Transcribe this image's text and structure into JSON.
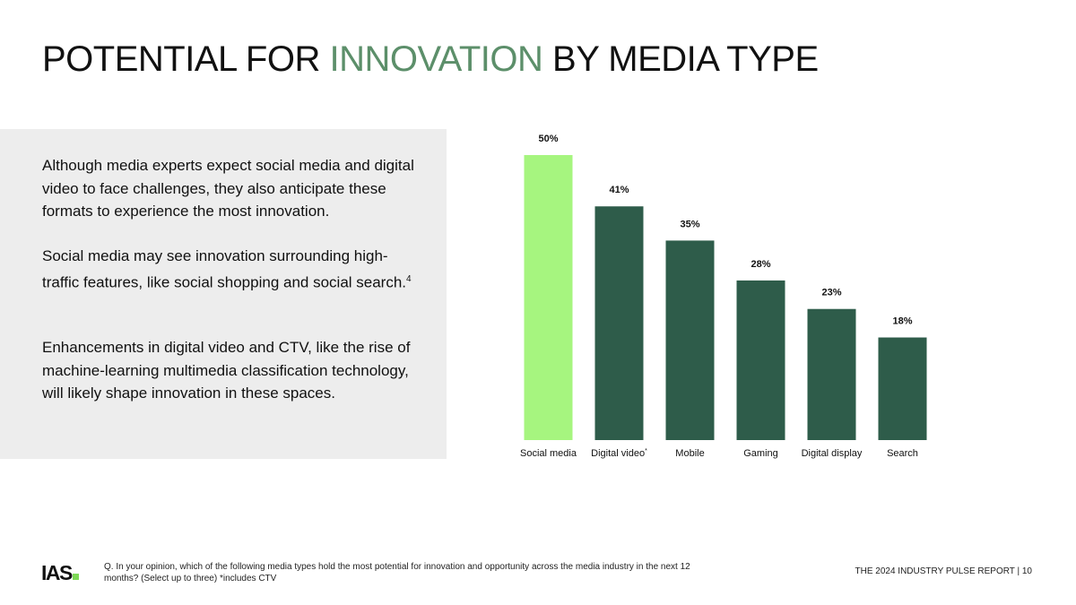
{
  "header": {
    "title_before": "POTENTIAL FOR ",
    "title_accent": "INNOVATION",
    "title_after": " BY MEDIA TYPE"
  },
  "body": {
    "p1": "Although media experts expect social media and digital video to face challenges, they also anticipate these formats to experience the most innovation.",
    "p2": "Social media may see innovation surrounding high-traffic features, like social shopping and social search.",
    "p2_ref": "4",
    "p3": "Enhancements in digital video and CTV, like the rise of machine-learning multimedia classification technology, will likely shape innovation in these spaces."
  },
  "chart_data": {
    "type": "bar",
    "categories": [
      "Social media",
      "Digital video",
      "Mobile",
      "Gaming",
      "Digital display",
      "Search"
    ],
    "category_marks": [
      "",
      "*",
      "",
      "",
      "",
      ""
    ],
    "values": [
      50,
      41,
      35,
      28,
      23,
      18
    ],
    "value_labels": [
      "50%",
      "41%",
      "35%",
      "28%",
      "23%",
      "18%"
    ],
    "ylim": [
      0,
      50
    ],
    "title": "",
    "xlabel": "",
    "ylabel": "",
    "grid": false,
    "colors": [
      "#a6f57f",
      "#2e5c4a",
      "#2e5c4a",
      "#2e5c4a",
      "#2e5c4a",
      "#2e5c4a"
    ]
  },
  "footer": {
    "logo": "IAS",
    "question": "Q. In your opinion, which of the following media types hold the most potential for innovation and opportunity across the media industry in the next 12 months? (Select up to three) *includes CTV",
    "report": "THE 2024 INDUSTRY PULSE REPORT  |  10"
  }
}
